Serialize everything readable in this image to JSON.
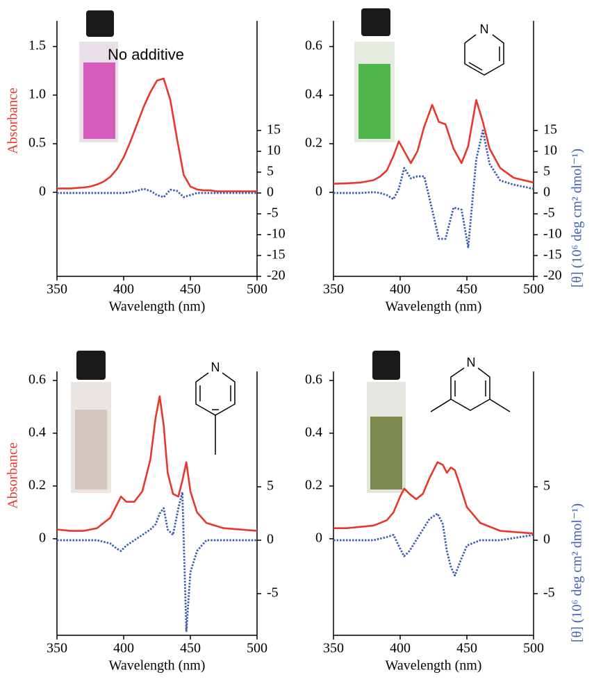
{
  "chart_data": [
    {
      "type": "line",
      "annotation": "No additive",
      "xlabel": "Wavelength (nm)",
      "ylabel": "Absorbance",
      "x": [
        350,
        355,
        360,
        365,
        370,
        375,
        380,
        385,
        390,
        395,
        400,
        405,
        410,
        415,
        420,
        425,
        430,
        435,
        440,
        445,
        450,
        455,
        460,
        465,
        470,
        475,
        480,
        485,
        490,
        495,
        500
      ],
      "series": [
        {
          "color": "#e8372a",
          "linestyle": "solid",
          "axis": "y",
          "values": [
            0.04,
            0.04,
            0.04,
            0.045,
            0.05,
            0.06,
            0.08,
            0.11,
            0.16,
            0.24,
            0.36,
            0.52,
            0.7,
            0.88,
            1.03,
            1.15,
            1.17,
            0.95,
            0.55,
            0.18,
            0.06,
            0.03,
            0.02,
            0.02,
            0.01,
            0.01,
            0.01,
            0.01,
            0.01,
            0.01,
            0.01
          ]
        },
        {
          "color": "#3d5fb0",
          "linestyle": "dotted",
          "axis": "y2",
          "values": [
            0,
            0,
            0,
            0,
            0,
            0,
            0,
            0,
            0,
            0,
            0,
            0.2,
            0.5,
            1,
            0.5,
            -0.5,
            -1,
            0.8,
            0.5,
            -1,
            -0.5,
            0,
            0,
            0,
            0,
            0,
            0,
            0,
            0,
            0,
            0
          ]
        }
      ],
      "xlim": [
        350,
        500
      ],
      "xticks": [
        350,
        400,
        450,
        500
      ],
      "ylim": [
        -0.864,
        1.764
      ],
      "yticks": [
        0,
        0.5,
        {
          "value": 1,
          "label": "1.0"
        },
        1.5
      ],
      "y2lim": [
        -20,
        41.3
      ],
      "y2ticks": [
        15,
        10,
        5,
        0,
        -5,
        -10,
        -15,
        -20
      ]
    },
    {
      "type": "line",
      "annotation": "N",
      "xlabel": "Wavelength (nm)",
      "y2label": "[θ]  (10⁶ deg cm² dmol⁻¹)",
      "x": [
        350,
        360,
        370,
        380,
        385,
        390,
        395,
        399,
        403,
        408,
        413,
        418,
        424,
        429,
        434,
        440,
        446,
        451,
        457,
        462,
        467,
        475,
        485,
        500
      ],
      "series": [
        {
          "color": "#e8372a",
          "linestyle": "solid",
          "axis": "y",
          "values": [
            0.035,
            0.037,
            0.04,
            0.05,
            0.065,
            0.09,
            0.15,
            0.21,
            0.17,
            0.12,
            0.17,
            0.27,
            0.36,
            0.29,
            0.28,
            0.18,
            0.12,
            0.19,
            0.38,
            0.29,
            0.18,
            0.1,
            0.06,
            0.04
          ]
        },
        {
          "color": "#3d5fb0",
          "linestyle": "dotted",
          "axis": "y2",
          "values": [
            0,
            0,
            0,
            0.2,
            0,
            -0.5,
            -1.5,
            1,
            6,
            3.5,
            4,
            4,
            -4,
            -11,
            -11,
            -3.5,
            -4,
            -13,
            8,
            15,
            7,
            3,
            2,
            1
          ]
        }
      ],
      "xlim": [
        350,
        500
      ],
      "xticks": [
        350,
        400,
        450,
        500
      ],
      "ylim": [
        -0.346,
        0.706
      ],
      "yticks": [
        0,
        0.2,
        0.4,
        0.6
      ],
      "y2lim": [
        -20,
        41.3
      ],
      "y2ticks": [
        15,
        10,
        5,
        0,
        -5,
        -10,
        -15,
        -20
      ]
    },
    {
      "type": "line",
      "annotation": "N",
      "xlabel": "Wavelength (nm)",
      "ylabel": "Absorbance",
      "x": [
        350,
        360,
        370,
        380,
        390,
        395,
        398,
        402,
        408,
        414,
        420,
        424,
        427,
        430,
        433,
        437,
        441,
        444,
        447,
        450,
        455,
        462,
        475,
        500
      ],
      "series": [
        {
          "color": "#e8372a",
          "linestyle": "solid",
          "axis": "y",
          "values": [
            0.035,
            0.03,
            0.03,
            0.04,
            0.08,
            0.13,
            0.16,
            0.14,
            0.14,
            0.18,
            0.3,
            0.46,
            0.54,
            0.43,
            0.25,
            0.17,
            0.16,
            0.22,
            0.29,
            0.18,
            0.1,
            0.06,
            0.04,
            0.03
          ]
        },
        {
          "color": "#3d5fb0",
          "linestyle": "dotted",
          "axis": "y2",
          "values": [
            0,
            0,
            0,
            0,
            -0.3,
            -0.8,
            -1,
            -0.5,
            0,
            0.5,
            1,
            1.5,
            2.5,
            3,
            1,
            0.5,
            3,
            4.5,
            -8.5,
            -3,
            -1,
            0,
            0,
            0
          ]
        }
      ],
      "xlim": [
        350,
        500
      ],
      "xticks": [
        350,
        400,
        450,
        500
      ],
      "ylim": [
        -0.366,
        0.634
      ],
      "yticks": [
        0,
        0.2,
        0.4,
        0.6
      ],
      "y2lim": [
        -8.9,
        15.8
      ],
      "y2ticks": [
        5,
        0,
        -5
      ]
    },
    {
      "type": "line",
      "annotation": "N",
      "xlabel": "Wavelength (nm)",
      "y2label": "[θ]  (10⁶ deg cm² dmol⁻¹)",
      "x": [
        350,
        360,
        370,
        380,
        390,
        395,
        400,
        403,
        407,
        412,
        417,
        422,
        428,
        432,
        435,
        438,
        441,
        445,
        450,
        460,
        475,
        500
      ],
      "series": [
        {
          "color": "#e8372a",
          "linestyle": "solid",
          "axis": "y",
          "values": [
            0.04,
            0.04,
            0.045,
            0.05,
            0.07,
            0.1,
            0.16,
            0.19,
            0.17,
            0.15,
            0.17,
            0.23,
            0.29,
            0.28,
            0.25,
            0.27,
            0.26,
            0.2,
            0.12,
            0.06,
            0.03,
            0.02
          ]
        },
        {
          "color": "#3d5fb0",
          "linestyle": "dotted",
          "axis": "y2",
          "values": [
            0,
            0,
            0,
            0,
            0.3,
            0.5,
            -0.8,
            -1.5,
            -1,
            0,
            1,
            2,
            2.5,
            1.5,
            -1,
            -2.5,
            -3.3,
            -2,
            -0.5,
            0,
            0,
            0.5
          ]
        }
      ],
      "xlim": [
        350,
        500
      ],
      "xticks": [
        350,
        400,
        450,
        500
      ],
      "ylim": [
        -0.366,
        0.634
      ],
      "yticks": [
        0,
        0.2,
        0.4,
        0.6
      ],
      "y2lim": [
        -8.9,
        15.8
      ],
      "y2ticks": [
        5,
        0,
        -5
      ]
    }
  ]
}
